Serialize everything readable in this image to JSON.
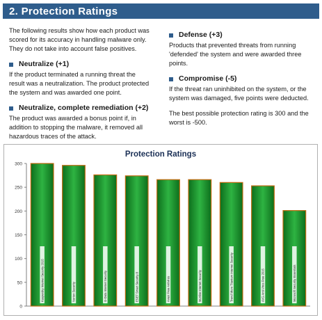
{
  "section": {
    "title": "2. Protection Ratings"
  },
  "intro": "The following results show how each product was scored for its accuracy in handling malware only. They do not take into account false positives.",
  "ratings": [
    {
      "heading": "Neutralize (+1)",
      "text": "If the product terminated a running threat the result was a neutralization. The product protected the system and was awarded one point."
    },
    {
      "heading": "Neutralize, complete remediation (+2)",
      "text": "The product was awarded a bonus point if, in addition to stopping the malware, it removed all hazardous traces of the attack."
    },
    {
      "heading": "Defense (+3)",
      "text": "Products that prevented threats from running 'defended' the system and were awarded three points."
    },
    {
      "heading": "Compromise (-5)",
      "text": "If the threat ran uninhibited on the system, or the system was damaged, five points were deducted."
    }
  ],
  "summary": "The best possible protection rating is 300 and the worst is -500.",
  "colors": {
    "header_bg": "#2f5d8c",
    "bar_fill": "#1f9a2e",
    "bar_dark": "#0d6e1c",
    "bar_outline": "#c06a10",
    "chart_title": "#1a2f55"
  },
  "chart_data": {
    "type": "bar",
    "title": "Protection Ratings",
    "categories": [
      "Kaspersky Internet Security 2015",
      "Norton Security",
      "G-Data Internet Security",
      "ESET Smart Security 8",
      "Avast Free Antivirus",
      "McAfee Internet Security",
      "Trend Micro Titanium Internet Security",
      "AVG Anti-Virus Free 2015",
      "Microsoft Security Essentials"
    ],
    "values": [
      300,
      296,
      276,
      274,
      266,
      266,
      260,
      253,
      201
    ],
    "ylim": [
      0,
      300
    ],
    "yticks": [
      0,
      50,
      100,
      150,
      200,
      250,
      300
    ],
    "grid": false,
    "legend": "none"
  }
}
